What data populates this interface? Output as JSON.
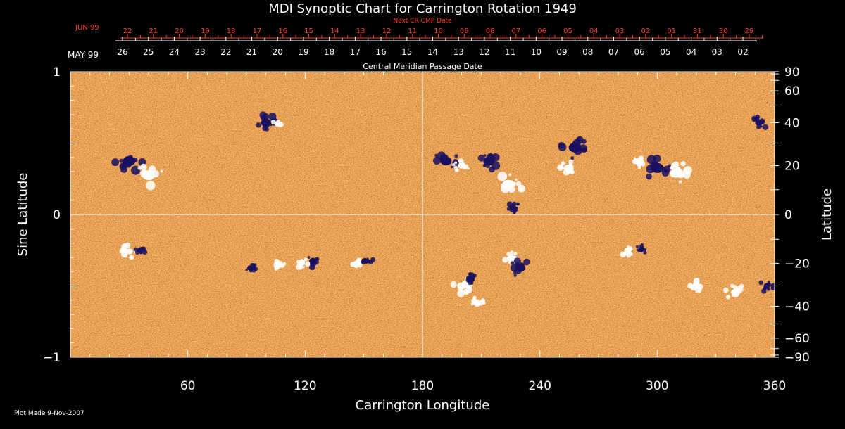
{
  "chart_data": {
    "type": "heatmap",
    "title": "MDI Synoptic Chart for Carrington Rotation 1949",
    "xlabel": "Carrington Longitude",
    "ylabel_left": "Sine Latitude",
    "ylabel_right": "Latitude",
    "xlim": [
      0,
      360
    ],
    "ylim": [
      -1,
      1
    ],
    "x_ticks": [
      60,
      120,
      180,
      240,
      300,
      360
    ],
    "y_ticks_left": [
      {
        "v": 1,
        "label": "1"
      },
      {
        "v": 0,
        "label": "0"
      },
      {
        "v": -1,
        "label": "−1"
      }
    ],
    "y_ticks_right": [
      {
        "deg": 90,
        "label": "90"
      },
      {
        "deg": 60,
        "label": "60"
      },
      {
        "deg": 40,
        "label": "40"
      },
      {
        "deg": 20,
        "label": "20"
      },
      {
        "deg": 0,
        "label": "0"
      },
      {
        "deg": -20,
        "label": "−20"
      },
      {
        "deg": -40,
        "label": "−40"
      },
      {
        "deg": -60,
        "label": "−60"
      },
      {
        "deg": -90,
        "label": "−90"
      }
    ],
    "grid": "center cross at 180 longitude and 0 latitude",
    "top_axis_upper": {
      "title": "Next CR CMP Date",
      "month_label": "JUN 99",
      "labels": [
        "22",
        "21",
        "20",
        "19",
        "18",
        "17",
        "16",
        "15",
        "14",
        "13",
        "12",
        "11",
        "10",
        "09",
        "08",
        "07",
        "06",
        "05",
        "04",
        "03",
        "02",
        "01",
        "31",
        "30",
        "29"
      ],
      "color": "#ff3b1e"
    },
    "top_axis_lower": {
      "title": "Central Meridian Passage Date",
      "month_label": "MAY 99",
      "labels": [
        "26",
        "25",
        "24",
        "23",
        "22",
        "21",
        "20",
        "19",
        "18",
        "17",
        "16",
        "15",
        "14",
        "13",
        "12",
        "11",
        "10",
        "09",
        "08",
        "07",
        "06",
        "05",
        "04",
        "03",
        "02"
      ],
      "color": "#ffffff"
    },
    "regions": [
      {
        "lon": 30,
        "lat": 22,
        "polarity": "negative",
        "size": 10
      },
      {
        "lon": 40,
        "lat": 16,
        "polarity": "positive",
        "size": 10
      },
      {
        "lon": 100,
        "lat": 40,
        "polarity": "negative",
        "size": 8
      },
      {
        "lon": 106,
        "lat": 40,
        "polarity": "positive",
        "size": 4
      },
      {
        "lon": 192,
        "lat": 22,
        "polarity": "negative",
        "size": 9
      },
      {
        "lon": 200,
        "lat": 20,
        "polarity": "positive",
        "size": 6
      },
      {
        "lon": 214,
        "lat": 22,
        "polarity": "negative",
        "size": 9
      },
      {
        "lon": 224,
        "lat": 12,
        "polarity": "positive",
        "size": 10
      },
      {
        "lon": 226,
        "lat": 3,
        "polarity": "negative",
        "size": 5
      },
      {
        "lon": 258,
        "lat": 28,
        "polarity": "negative",
        "size": 10
      },
      {
        "lon": 254,
        "lat": 19,
        "polarity": "positive",
        "size": 6
      },
      {
        "lon": 300,
        "lat": 19,
        "polarity": "negative",
        "size": 10
      },
      {
        "lon": 310,
        "lat": 17,
        "polarity": "positive",
        "size": 10
      },
      {
        "lon": 290,
        "lat": 22,
        "polarity": "positive",
        "size": 6
      },
      {
        "lon": 352,
        "lat": 40,
        "polarity": "negative",
        "size": 6
      },
      {
        "lon": 30,
        "lat": -15,
        "polarity": "positive",
        "size": 6
      },
      {
        "lon": 36,
        "lat": -14,
        "polarity": "negative",
        "size": 4
      },
      {
        "lon": 92,
        "lat": -22,
        "polarity": "negative",
        "size": 4
      },
      {
        "lon": 106,
        "lat": -21,
        "polarity": "positive",
        "size": 5
      },
      {
        "lon": 118,
        "lat": -20,
        "polarity": "positive",
        "size": 5
      },
      {
        "lon": 124,
        "lat": -19,
        "polarity": "negative",
        "size": 6
      },
      {
        "lon": 146,
        "lat": -20,
        "polarity": "positive",
        "size": 5
      },
      {
        "lon": 152,
        "lat": -19,
        "polarity": "negative",
        "size": 4
      },
      {
        "lon": 200,
        "lat": -30,
        "polarity": "positive",
        "size": 7
      },
      {
        "lon": 205,
        "lat": -27,
        "polarity": "negative",
        "size": 5
      },
      {
        "lon": 225,
        "lat": -18,
        "polarity": "positive",
        "size": 6
      },
      {
        "lon": 230,
        "lat": -22,
        "polarity": "negative",
        "size": 8
      },
      {
        "lon": 208,
        "lat": -38,
        "polarity": "positive",
        "size": 5
      },
      {
        "lon": 285,
        "lat": -15,
        "polarity": "positive",
        "size": 5
      },
      {
        "lon": 292,
        "lat": -14,
        "polarity": "negative",
        "size": 4
      },
      {
        "lon": 320,
        "lat": -30,
        "polarity": "positive",
        "size": 6
      },
      {
        "lon": 340,
        "lat": -33,
        "polarity": "positive",
        "size": 7
      },
      {
        "lon": 356,
        "lat": -30,
        "polarity": "negative",
        "size": 5
      }
    ]
  },
  "footer": {
    "plot_made": "Plot Made  9-Nov-2007"
  },
  "colors": {
    "background_field": "#f25a10",
    "positive": "#ffffff",
    "negative": "#1a1060",
    "axis": "#ffffff"
  }
}
